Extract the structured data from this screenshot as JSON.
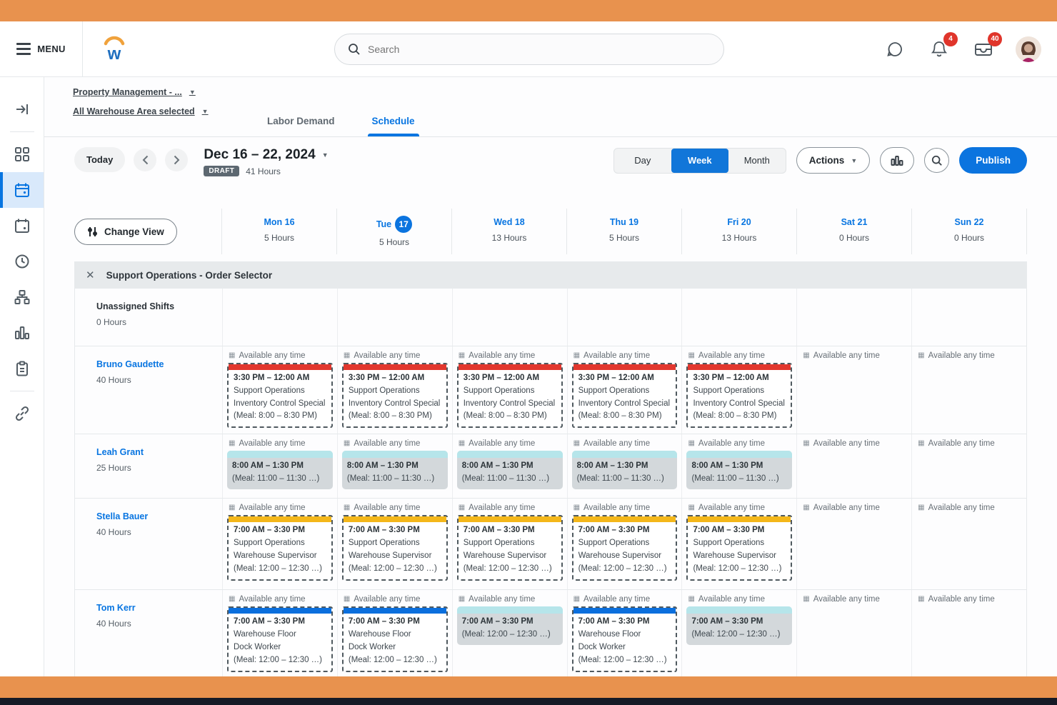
{
  "colors": {
    "frame_orange": "#E8924E",
    "footer_navy": "#151A26",
    "accent_blue": "#0875E1",
    "shift_red": "#E2372E",
    "shift_yellow": "#F4B71A",
    "shift_blue": "#0B6FDD",
    "shift_cyan": "#B6E5EA"
  },
  "topbar": {
    "menu_label": "MENU",
    "logo_letter": "w",
    "search_placeholder": "Search",
    "notifications_badge": "4",
    "inbox_badge": "40"
  },
  "header": {
    "org_selector": "Property Management - ...",
    "area_selector": "All Warehouse Area selected",
    "tabs": [
      {
        "label": "Labor Demand",
        "active": false
      },
      {
        "label": "Schedule",
        "active": true
      }
    ]
  },
  "toolbar": {
    "today": "Today",
    "date_range": "Dec 16 – 22, 2024",
    "status_badge": "DRAFT",
    "total_hours": "41 Hours",
    "views": [
      "Day",
      "Week",
      "Month"
    ],
    "active_view": "Week",
    "actions": "Actions",
    "publish": "Publish"
  },
  "grid": {
    "change_view": "Change View",
    "section_title": "Support Operations - Order Selector",
    "available_label": "Available any time",
    "days": [
      {
        "label": "Mon 16",
        "hours": "5 Hours",
        "today": false
      },
      {
        "label": "Tue",
        "date_badge": "17",
        "hours": "5 Hours",
        "today": true
      },
      {
        "label": "Wed 18",
        "hours": "13 Hours",
        "today": false
      },
      {
        "label": "Thu 19",
        "hours": "5 Hours",
        "today": false
      },
      {
        "label": "Fri 20",
        "hours": "13 Hours",
        "today": false
      },
      {
        "label": "Sat 21",
        "hours": "0 Hours",
        "today": false
      },
      {
        "label": "Sun 22",
        "hours": "0 Hours",
        "today": false
      }
    ],
    "rows": [
      {
        "name": "Unassigned Shifts",
        "hours": "0 Hours",
        "link": false,
        "cells": [
          null,
          null,
          null,
          null,
          null,
          null,
          null
        ]
      },
      {
        "name": "Bruno Gaudette",
        "hours": "40 Hours",
        "link": true,
        "cells": [
          {
            "available": true,
            "card": {
              "variant": "dashed",
              "bar": "shift_red",
              "lines": [
                "3:30 PM – 12:00 AM",
                "Support Operations",
                "Inventory Control Special",
                "(Meal: 8:00 – 8:30 PM)"
              ]
            }
          },
          {
            "available": true,
            "card": {
              "variant": "dashed",
              "bar": "shift_red",
              "lines": [
                "3:30 PM – 12:00 AM",
                "Support Operations",
                "Inventory Control Special",
                "(Meal: 8:00 – 8:30 PM)"
              ]
            }
          },
          {
            "available": true,
            "card": {
              "variant": "dashed",
              "bar": "shift_red",
              "lines": [
                "3:30 PM – 12:00 AM",
                "Support Operations",
                "Inventory Control Special",
                "(Meal: 8:00 – 8:30 PM)"
              ]
            }
          },
          {
            "available": true,
            "card": {
              "variant": "dashed",
              "bar": "shift_red",
              "lines": [
                "3:30 PM – 12:00 AM",
                "Support Operations",
                "Inventory Control Special",
                "(Meal: 8:00 – 8:30 PM)"
              ]
            }
          },
          {
            "available": true,
            "card": {
              "variant": "dashed",
              "bar": "shift_red",
              "lines": [
                "3:30 PM – 12:00 AM",
                "Support Operations",
                "Inventory Control Special",
                "(Meal: 8:00 – 8:30 PM)"
              ]
            }
          },
          {
            "available": true
          },
          {
            "available": true
          }
        ]
      },
      {
        "name": "Leah Grant",
        "hours": "25 Hours",
        "link": true,
        "cells": [
          {
            "available": true,
            "card": {
              "variant": "solid",
              "bar": "shift_cyan",
              "lines": [
                "8:00 AM – 1:30 PM",
                "(Meal: 11:00 – 11:30 …)"
              ]
            }
          },
          {
            "available": true,
            "card": {
              "variant": "solid",
              "bar": "shift_cyan",
              "lines": [
                "8:00 AM – 1:30 PM",
                "(Meal: 11:00 – 11:30 …)"
              ]
            }
          },
          {
            "available": true,
            "card": {
              "variant": "solid",
              "bar": "shift_cyan",
              "lines": [
                "8:00 AM – 1:30 PM",
                "(Meal: 11:00 – 11:30 …)"
              ]
            }
          },
          {
            "available": true,
            "card": {
              "variant": "solid",
              "bar": "shift_cyan",
              "lines": [
                "8:00 AM – 1:30 PM",
                "(Meal: 11:00 – 11:30 …)"
              ]
            }
          },
          {
            "available": true,
            "card": {
              "variant": "solid",
              "bar": "shift_cyan",
              "lines": [
                "8:00 AM – 1:30 PM",
                "(Meal: 11:00 – 11:30 …)"
              ]
            }
          },
          {
            "available": true
          },
          {
            "available": true
          }
        ]
      },
      {
        "name": "Stella Bauer",
        "hours": "40 Hours",
        "link": true,
        "cells": [
          {
            "available": true,
            "card": {
              "variant": "dashed",
              "bar": "shift_yellow",
              "lines": [
                "7:00 AM – 3:30 PM",
                "Support Operations",
                "Warehouse Supervisor",
                "(Meal: 12:00 – 12:30 …)"
              ]
            }
          },
          {
            "available": true,
            "card": {
              "variant": "dashed",
              "bar": "shift_yellow",
              "lines": [
                "7:00 AM – 3:30 PM",
                "Support Operations",
                "Warehouse Supervisor",
                "(Meal: 12:00 – 12:30 …)"
              ]
            }
          },
          {
            "available": true,
            "card": {
              "variant": "dashed",
              "bar": "shift_yellow",
              "lines": [
                "7:00 AM – 3:30 PM",
                "Support Operations",
                "Warehouse Supervisor",
                "(Meal: 12:00 – 12:30 …)"
              ]
            }
          },
          {
            "available": true,
            "card": {
              "variant": "dashed",
              "bar": "shift_yellow",
              "lines": [
                "7:00 AM – 3:30 PM",
                "Support Operations",
                "Warehouse Supervisor",
                "(Meal: 12:00 – 12:30 …)"
              ]
            }
          },
          {
            "available": true,
            "card": {
              "variant": "dashed",
              "bar": "shift_yellow",
              "lines": [
                "7:00 AM – 3:30 PM",
                "Support Operations",
                "Warehouse Supervisor",
                "(Meal: 12:00 – 12:30 …)"
              ]
            }
          },
          {
            "available": true
          },
          {
            "available": true
          }
        ]
      },
      {
        "name": "Tom Kerr",
        "hours": "40 Hours",
        "link": true,
        "cells": [
          {
            "available": true,
            "card": {
              "variant": "dashed",
              "bar": "shift_blue",
              "lines": [
                "7:00 AM – 3:30 PM",
                "Warehouse Floor",
                "Dock Worker",
                "(Meal: 12:00 – 12:30 …)"
              ]
            }
          },
          {
            "available": true,
            "card": {
              "variant": "dashed",
              "bar": "shift_blue",
              "lines": [
                "7:00 AM – 3:30 PM",
                "Warehouse Floor",
                "Dock Worker",
                "(Meal: 12:00 – 12:30 …)"
              ]
            }
          },
          {
            "available": true,
            "card": {
              "variant": "solid",
              "bar": "shift_cyan",
              "lines": [
                "7:00 AM – 3:30 PM",
                "(Meal: 12:00 – 12:30 …)"
              ]
            }
          },
          {
            "available": true,
            "card": {
              "variant": "dashed",
              "bar": "shift_blue",
              "lines": [
                "7:00 AM – 3:30 PM",
                "Warehouse Floor",
                "Dock Worker",
                "(Meal: 12:00 – 12:30 …)"
              ]
            }
          },
          {
            "available": true,
            "card": {
              "variant": "solid",
              "bar": "shift_cyan",
              "lines": [
                "7:00 AM – 3:30 PM",
                "(Meal: 12:00 – 12:30 …)"
              ]
            }
          },
          {
            "available": true
          },
          {
            "available": true
          }
        ]
      }
    ]
  }
}
